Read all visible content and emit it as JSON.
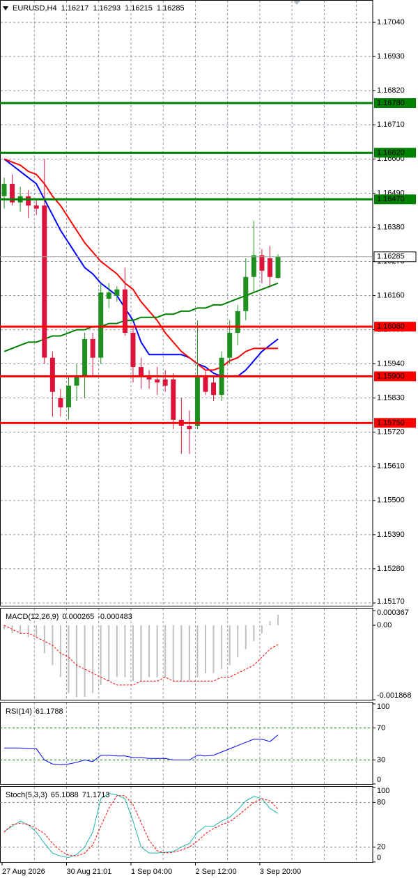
{
  "chart_data": [
    {
      "type": "candlestick",
      "title": "EURUSD,H4",
      "categories": [
        "27 Aug 2026",
        null,
        null,
        null,
        null,
        null,
        null,
        null,
        "30 Aug 21:01",
        null,
        null,
        null,
        null,
        null,
        null,
        null,
        "1 Sep 04:00",
        null,
        null,
        null,
        null,
        null,
        null,
        null,
        "2 Sep 12:00",
        null,
        null,
        null,
        null,
        null,
        null,
        null,
        "3 Sep 20:00",
        null,
        null
      ],
      "open": [
        1.1648,
        1.1652,
        1.1646,
        1.1648,
        1.1645,
        1.1645,
        1.1596,
        1.1583,
        1.158,
        1.1587,
        1.159,
        1.1602,
        1.1596,
        1.1615,
        1.1616,
        1.1618,
        1.1604,
        1.1593,
        1.159,
        1.1589,
        1.1589,
        1.1589,
        1.1576,
        1.1574,
        1.1574,
        1.159,
        1.1588,
        1.1584,
        1.1596,
        1.1604,
        1.1611,
        1.1622,
        1.1629,
        1.1628,
        1.16217
      ],
      "high": [
        1.1654,
        1.1655,
        1.1651,
        1.165,
        1.1647,
        1.166,
        1.1598,
        1.1586,
        1.159,
        1.1594,
        1.1604,
        1.1604,
        1.162,
        1.162,
        1.1619,
        1.1625,
        1.1606,
        1.1596,
        1.1592,
        1.1593,
        1.1592,
        1.1591,
        1.1583,
        1.1579,
        1.1608,
        1.1592,
        1.159,
        1.1598,
        1.1608,
        1.1613,
        1.1628,
        1.164,
        1.1631,
        1.1632,
        1.16293
      ],
      "low": [
        1.1644,
        1.1645,
        1.1643,
        1.1641,
        1.1642,
        1.1594,
        1.1577,
        1.1577,
        1.1576,
        1.1582,
        1.1583,
        1.159,
        1.1594,
        1.1612,
        1.1614,
        1.1603,
        1.1588,
        1.1586,
        1.1586,
        1.1584,
        1.1585,
        1.1573,
        1.1565,
        1.1565,
        1.1573,
        1.1584,
        1.1582,
        1.1582,
        1.1594,
        1.16,
        1.1608,
        1.1617,
        1.162,
        1.1619,
        1.16215
      ],
      "close": [
        1.1652,
        1.1646,
        1.1648,
        1.1645,
        1.1644,
        1.1596,
        1.1585,
        1.158,
        1.1587,
        1.159,
        1.1602,
        1.1596,
        1.1617,
        1.1617,
        1.1618,
        1.1604,
        1.1593,
        1.159,
        1.1589,
        1.1588,
        1.1587,
        1.1576,
        1.1574,
        1.1573,
        1.159,
        1.1585,
        1.1584,
        1.1596,
        1.1604,
        1.1611,
        1.1622,
        1.1629,
        1.1624,
        1.1622,
        1.16285
      ],
      "up_color": "#1f8f1f",
      "down_color": "#dc143c",
      "price_line_color": "#a0a0a0",
      "lines": [
        {
          "color": "#0000ff",
          "values": [
            1.166,
            1.1658,
            1.1656,
            1.1654,
            1.1652,
            1.1647,
            1.1642,
            1.1637,
            1.1633,
            1.1629,
            1.1625,
            1.1623,
            1.162,
            1.1618,
            1.1616,
            1.1612,
            1.1608,
            1.1601,
            1.1597,
            1.1597,
            1.1597,
            1.1597,
            1.1597,
            1.1596,
            1.1594,
            1.1593,
            1.1591,
            1.159,
            1.159,
            1.159,
            1.1592,
            1.1595,
            1.1598,
            1.16,
            1.1602
          ]
        },
        {
          "color": "#ff0000",
          "values": [
            1.166,
            1.1659,
            1.1658,
            1.1656,
            1.1655,
            1.1652,
            1.1648,
            1.1645,
            1.1641,
            1.1637,
            1.1633,
            1.163,
            1.1627,
            1.1625,
            1.1623,
            1.162,
            1.1618,
            1.1614,
            1.1611,
            1.1608,
            1.1604,
            1.1601,
            1.1598,
            1.1596,
            1.1594,
            1.1592,
            1.1592,
            1.1593,
            1.1595,
            1.1596,
            1.1598,
            1.1599,
            1.1599,
            1.1599,
            1.1599
          ]
        },
        {
          "color": "#008000",
          "values": [
            1.1598,
            1.1599,
            1.16,
            1.1601,
            1.1601,
            1.1602,
            1.1603,
            1.1603,
            1.1604,
            1.1605,
            1.1605,
            1.1606,
            1.1606,
            1.1607,
            1.1607,
            1.1608,
            1.1608,
            1.1609,
            1.1609,
            1.1609,
            1.161,
            1.161,
            1.1611,
            1.1611,
            1.1612,
            1.1612,
            1.1613,
            1.1613,
            1.1614,
            1.1615,
            1.1616,
            1.1617,
            1.1618,
            1.1619,
            1.162
          ]
        }
      ],
      "levels": [
        {
          "value": 1.1678,
          "label": "1.16780",
          "color": "#008000"
        },
        {
          "value": 1.1662,
          "label": "1.16620",
          "color": "#008000"
        },
        {
          "value": 1.1647,
          "label": "1.16470",
          "color": "#008000"
        },
        {
          "value": 1.1606,
          "label": "1.16060",
          "color": "#ff0000"
        },
        {
          "value": 1.159,
          "label": "1.15900",
          "color": "#ff0000"
        },
        {
          "value": 1.1575,
          "label": "1.15750",
          "color": "#ff0000"
        }
      ],
      "ylim": [
        1.15161,
        1.17112
      ],
      "yticks": [
        {
          "value": 1.1704,
          "label": "1.17040"
        },
        {
          "value": 1.1693,
          "label": "1.16930"
        },
        {
          "value": 1.1682,
          "label": "1.16820"
        },
        {
          "value": 1.1671,
          "label": "1.16710"
        },
        {
          "value": 1.166,
          "label": "1.16600"
        },
        {
          "value": 1.1649,
          "label": "1.16490"
        },
        {
          "value": 1.1638,
          "label": "1.16380"
        },
        {
          "value": 1.1627,
          "label": "1.16270"
        },
        {
          "value": 1.1616,
          "label": "1.16160"
        },
        {
          "value": 1.1605,
          "label": "1.16050"
        },
        {
          "value": 1.1594,
          "label": "1.15940"
        },
        {
          "value": 1.1583,
          "label": "1.15830"
        },
        {
          "value": 1.1572,
          "label": "1.15720"
        },
        {
          "value": 1.1561,
          "label": "1.15610"
        },
        {
          "value": 1.155,
          "label": "1.15500"
        },
        {
          "value": 1.1539,
          "label": "1.15390"
        },
        {
          "value": 1.1528,
          "label": "1.15280"
        },
        {
          "value": 1.1517,
          "label": "1.15170"
        }
      ],
      "grid": true
    },
    {
      "type": "macd",
      "title": "MACD(12,26,9)",
      "series": [
        {
          "color": "#c0c0c0",
          "style": "histogram",
          "values": [
            -0.0001,
            -0.0002,
            -0.0002,
            -0.0003,
            -0.0003,
            -0.0007,
            -0.001,
            -0.0013,
            -0.0017,
            -0.0018,
            -0.0018,
            -0.0017,
            -0.0015,
            -0.0014,
            -0.0013,
            -0.0013,
            -0.0014,
            -0.0014,
            -0.0013,
            -0.0013,
            -0.0013,
            -0.0014,
            -0.0014,
            -0.0014,
            -0.0013,
            -0.0012,
            -0.0012,
            -0.0011,
            -0.001,
            -0.0008,
            -0.0006,
            -0.0004,
            -0.0002,
            0.0001,
            0.000265
          ]
        },
        {
          "color": "#ff0000",
          "style": "dashed",
          "values": [
            0,
            -0.0001,
            -0.0002,
            -0.0002,
            -0.0003,
            -0.0004,
            -0.0005,
            -0.0007,
            -0.0008,
            -0.001,
            -0.0011,
            -0.0012,
            -0.0013,
            -0.0014,
            -0.0015,
            -0.0015,
            -0.0015,
            -0.0014,
            -0.0014,
            -0.0014,
            -0.0013,
            -0.0014,
            -0.0014,
            -0.0014,
            -0.0014,
            -0.0014,
            -0.0014,
            -0.0013,
            -0.0013,
            -0.0012,
            -0.0011,
            -0.001,
            -0.0008,
            -0.0006,
            -0.000483
          ]
        }
      ],
      "ylim": [
        -0.001868,
        0.000367
      ],
      "yticks": [
        0.000367,
        {
          "value": 0,
          "label": "0.00"
        },
        -0.001868
      ]
    },
    {
      "type": "line",
      "title": "RSI(14)",
      "series": [
        {
          "color": "#0000ff",
          "style": "solid",
          "values": [
            45,
            45,
            45,
            44,
            44,
            30,
            25,
            24,
            25,
            27,
            30,
            28,
            36,
            36,
            35,
            35,
            33,
            33,
            32,
            32,
            32,
            30,
            30,
            30,
            36,
            35,
            36,
            40,
            44,
            48,
            52,
            56,
            56,
            53,
            61.1788
          ]
        }
      ],
      "levels": [
        70,
        30
      ],
      "level_color": "#008000",
      "ylim": [
        0,
        100
      ],
      "yticks": [
        100,
        70,
        30,
        0
      ]
    },
    {
      "type": "line",
      "title": "Stoch(5,3,3)",
      "series": [
        {
          "color": "#20b2aa",
          "style": "solid",
          "values": [
            41,
            48,
            55,
            50,
            40,
            25,
            12,
            8,
            6,
            10,
            20,
            40,
            85,
            92,
            90,
            85,
            55,
            20,
            12,
            12,
            13,
            14,
            20,
            25,
            40,
            48,
            48,
            55,
            60,
            70,
            82,
            88,
            85,
            72,
            65.1088
          ]
        },
        {
          "color": "#ff0000",
          "style": "dashed",
          "values": [
            40,
            50,
            52,
            50,
            45,
            38,
            25,
            15,
            9,
            8,
            12,
            23,
            48,
            72,
            89,
            89,
            77,
            53,
            29,
            15,
            12,
            13,
            16,
            20,
            28,
            38,
            45,
            50,
            54,
            62,
            71,
            80,
            85,
            82,
            71.1713
          ]
        }
      ],
      "levels": [
        80,
        20
      ],
      "level_color": "#808080",
      "ylim": [
        0,
        100
      ],
      "yticks": [
        100,
        80,
        20,
        0
      ]
    }
  ]
}
